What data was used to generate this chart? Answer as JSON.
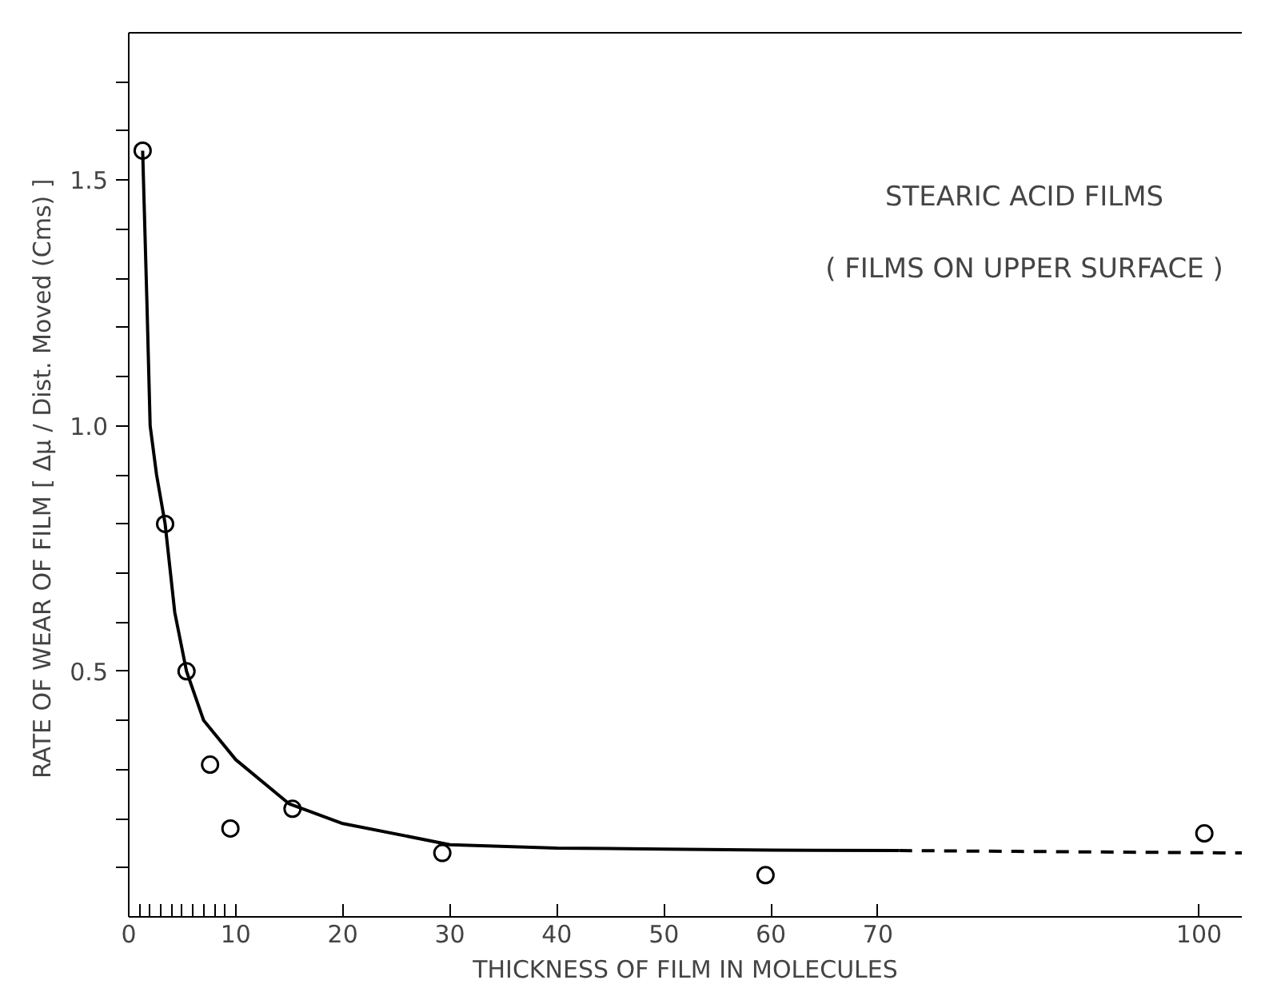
{
  "chart_data": {
    "type": "scatter",
    "title": "STEARIC ACID FILMS",
    "subtitle": "( FILMS ON UPPER SURFACE )",
    "xlabel": "THICKNESS OF FILM IN MOLECULES",
    "ylabel": "RATE OF WEAR OF FILM  [ Δμ / Dist. Moved (Cms) ]",
    "xlim": [
      0,
      104
    ],
    "ylim": [
      0,
      1.8
    ],
    "xticks": [
      {
        "value": 0,
        "label": "0"
      },
      {
        "value": 1,
        "label": null
      },
      {
        "value": 2,
        "label": null
      },
      {
        "value": 3,
        "label": null
      },
      {
        "value": 4,
        "label": null
      },
      {
        "value": 5,
        "label": null
      },
      {
        "value": 6,
        "label": null
      },
      {
        "value": 7,
        "label": null
      },
      {
        "value": 8,
        "label": null
      },
      {
        "value": 9,
        "label": null
      },
      10,
      20,
      30,
      40,
      50,
      60,
      70,
      100
    ],
    "yticks": [
      {
        "value": 0.1,
        "label": null
      },
      {
        "value": 0.2,
        "label": null
      },
      {
        "value": 0.3,
        "label": null
      },
      {
        "value": 0.4,
        "label": null
      },
      {
        "value": 0.5,
        "label": "0.5"
      },
      {
        "value": 0.6,
        "label": null
      },
      {
        "value": 0.7,
        "label": null
      },
      {
        "value": 0.8,
        "label": null
      },
      {
        "value": 0.9,
        "label": null
      },
      {
        "value": 1.0,
        "label": "1.0"
      },
      {
        "value": 1.1,
        "label": null
      },
      {
        "value": 1.2,
        "label": null
      },
      {
        "value": 1.3,
        "label": null
      },
      {
        "value": 1.4,
        "label": null
      },
      {
        "value": 1.5,
        "label": "1.5"
      },
      {
        "value": 1.6,
        "label": null
      },
      {
        "value": 1.7,
        "label": null
      }
    ],
    "grid": false,
    "series": [
      {
        "color": "#000000",
        "marker": "circle",
        "x": [
          1.3,
          3.4,
          5.4,
          7.6,
          9.5,
          15.3,
          29.3,
          59.5,
          100.5
        ],
        "values": [
          1.56,
          0.8,
          0.5,
          0.31,
          0.18,
          0.22,
          0.13,
          0.085,
          0.17
        ]
      },
      {
        "type": "line",
        "color": "#000000",
        "line_style": "solid",
        "x": [
          1.3,
          1.7,
          2.0,
          2.6,
          3.4,
          4.3,
          5.4,
          7,
          10,
          15,
          20,
          30,
          40,
          50,
          60,
          72
        ],
        "values": [
          1.56,
          1.25,
          1.0,
          0.9,
          0.8,
          0.62,
          0.5,
          0.4,
          0.32,
          0.23,
          0.19,
          0.147,
          0.14,
          0.138,
          0.136,
          0.135
        ]
      },
      {
        "type": "line",
        "color": "#000000",
        "line_style": "dashed",
        "x": [
          72,
          104
        ],
        "values": [
          0.135,
          0.13
        ]
      }
    ]
  }
}
